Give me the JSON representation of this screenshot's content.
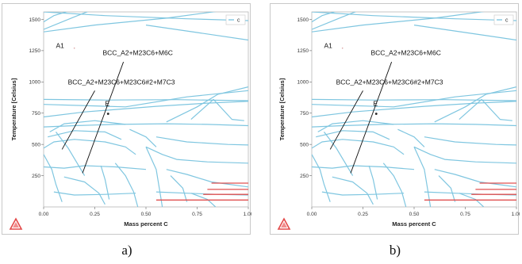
{
  "chart_data": [
    {
      "type": "phase-diagram",
      "xlabel": "Mass percent C",
      "ylabel": "Temperature [Celsius]",
      "xticks": [
        "0.00",
        "0.25",
        "0.50",
        "0.75",
        "1.00"
      ],
      "yticks": [
        "1500",
        "1250",
        "1000",
        "750",
        "500",
        "250"
      ],
      "xlim": [
        0,
        1
      ],
      "ylim": [
        0,
        1560
      ],
      "legend": "c",
      "annotations": {
        "a1": "A1",
        "upper_phase": "BCC_A2+M23C6+M6C",
        "lower_phase": "BCC_A2+M23C6+M23C6#2+M7C3",
        "point": "E"
      },
      "line_color": "#7fc6e0",
      "red_line_color": "#e05050"
    },
    {
      "type": "phase-diagram",
      "xlabel": "Mass percent C",
      "ylabel": "Temperature [Celsius]",
      "xticks": [
        "0.00",
        "0.25",
        "0.50",
        "0.75",
        "1.00"
      ],
      "yticks": [
        "1500",
        "1250",
        "1000",
        "750",
        "500",
        "250"
      ],
      "xlim": [
        0,
        1
      ],
      "ylim": [
        0,
        1560
      ],
      "legend": "c",
      "annotations": {
        "a1": "A1",
        "upper_phase": "BCC_A2+M23C6+M6C",
        "lower_phase": "BCC_A2+M23C6+M23C6#2+M7C3",
        "point": "E"
      },
      "line_color": "#7fc6e0",
      "red_line_color": "#e05050"
    }
  ],
  "captions": {
    "a": "a)",
    "b": "b)"
  }
}
